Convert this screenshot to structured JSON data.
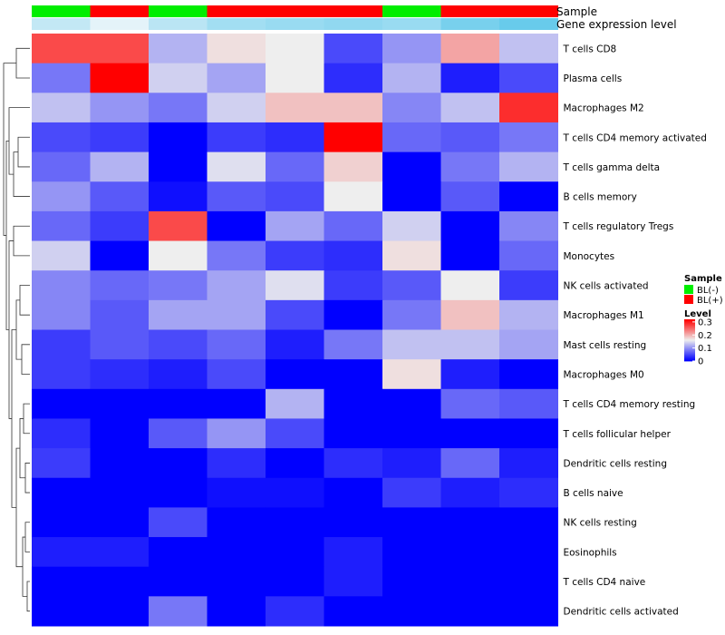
{
  "chart_data": {
    "type": "heatmap",
    "annotation_labels": {
      "sample": "Sample",
      "expression": "Gene expression level"
    },
    "sample_groups": [
      "BL(-)",
      "BL(+)",
      "BL(-)",
      "BL(+)",
      "BL(+)",
      "BL(+)",
      "BL(-)",
      "BL(+)",
      "BL(+)"
    ],
    "expression_levels": [
      0.3,
      0.1,
      0.35,
      0.5,
      0.55,
      0.6,
      0.55,
      0.75,
      0.85
    ],
    "rows": [
      "T cells CD8",
      "Plasma cells",
      "Macrophages M2",
      "T cells CD4 memory activated",
      "T cells gamma delta",
      "B cells memory",
      "T cells regulatory  Tregs",
      "Monocytes",
      "NK cells activated",
      "Macrophages M1",
      "Mast cells resting",
      "Macrophages M0",
      "T cells CD4 memory resting",
      "T cells follicular helper",
      "Dendritic cells resting",
      "B cells naive",
      "NK cells resting",
      "Eosinophils",
      "T cells CD4 naive",
      "Dendritic cells activated"
    ],
    "values": [
      [
        0.27,
        0.27,
        0.12,
        0.17,
        0.16,
        0.05,
        0.1,
        0.21,
        0.13
      ],
      [
        0.08,
        0.32,
        0.14,
        0.11,
        0.16,
        0.03,
        0.12,
        0.02,
        0.05
      ],
      [
        0.13,
        0.1,
        0.08,
        0.14,
        0.19,
        0.19,
        0.09,
        0.13,
        0.29
      ],
      [
        0.05,
        0.04,
        0.0,
        0.04,
        0.03,
        0.32,
        0.07,
        0.06,
        0.08
      ],
      [
        0.07,
        0.12,
        0.0,
        0.15,
        0.07,
        0.18,
        0.0,
        0.08,
        0.12
      ],
      [
        0.1,
        0.06,
        0.01,
        0.06,
        0.05,
        0.16,
        0.0,
        0.06,
        0.0
      ],
      [
        0.07,
        0.04,
        0.27,
        0.0,
        0.11,
        0.07,
        0.14,
        0.0,
        0.09
      ],
      [
        0.14,
        0.0,
        0.16,
        0.08,
        0.04,
        0.03,
        0.17,
        0.0,
        0.07
      ],
      [
        0.09,
        0.07,
        0.08,
        0.11,
        0.15,
        0.04,
        0.06,
        0.16,
        0.04
      ],
      [
        0.09,
        0.06,
        0.11,
        0.11,
        0.05,
        0.0,
        0.08,
        0.19,
        0.12
      ],
      [
        0.04,
        0.06,
        0.05,
        0.07,
        0.02,
        0.08,
        0.13,
        0.13,
        0.11
      ],
      [
        0.04,
        0.03,
        0.02,
        0.05,
        0.0,
        0.0,
        0.17,
        0.02,
        0.0
      ],
      [
        0.0,
        0.0,
        0.0,
        0.0,
        0.12,
        0.0,
        0.0,
        0.07,
        0.06
      ],
      [
        0.03,
        0.0,
        0.06,
        0.1,
        0.05,
        0.0,
        0.0,
        0.0,
        0.0
      ],
      [
        0.04,
        0.0,
        0.0,
        0.03,
        0.0,
        0.03,
        0.02,
        0.07,
        0.02
      ],
      [
        0.0,
        0.0,
        0.0,
        0.01,
        0.01,
        0.0,
        0.04,
        0.02,
        0.03
      ],
      [
        0.0,
        0.0,
        0.05,
        0.0,
        0.0,
        0.0,
        0.0,
        0.0,
        0.0
      ],
      [
        0.02,
        0.02,
        0.0,
        0.0,
        0.0,
        0.02,
        0.0,
        0.0,
        0.0
      ],
      [
        0.0,
        0.0,
        0.0,
        0.0,
        0.0,
        0.02,
        0.0,
        0.0,
        0.0
      ],
      [
        0.0,
        0.0,
        0.08,
        0.0,
        0.03,
        0.0,
        0.0,
        0.0,
        0.0
      ]
    ],
    "colors": {
      "low": "#0000FF",
      "mid": "#EEEEEE",
      "high": "#FF0000"
    },
    "color_midpoint": 0.16,
    "color_max": 0.32,
    "legend": {
      "sample_title": "Sample",
      "sample_items": [
        {
          "label": "BL(-)",
          "color": "#00EE00"
        },
        {
          "label": "BL(+)",
          "color": "#FF0000"
        }
      ],
      "level_title": "Level",
      "level_ticks": [
        0.3,
        0.2,
        0.1,
        0
      ],
      "placement": "right"
    },
    "row_dendrogram": true
  }
}
